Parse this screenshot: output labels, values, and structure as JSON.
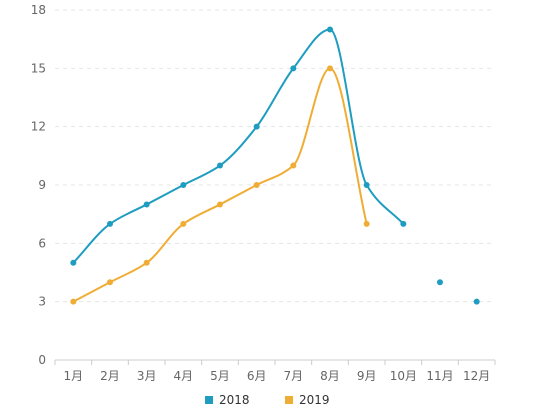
{
  "chart_data": {
    "type": "line",
    "title": "",
    "xlabel": "",
    "ylabel": "",
    "categories": [
      "1月",
      "2月",
      "3月",
      "4月",
      "5月",
      "6月",
      "7月",
      "8月",
      "9月",
      "10月",
      "11月",
      "12月"
    ],
    "ylim": [
      0,
      18
    ],
    "yticks": [
      0,
      3,
      6,
      9,
      12,
      15,
      18
    ],
    "grid": true,
    "smooth": true,
    "legend": "bottom",
    "series": [
      {
        "name": "2018",
        "color": "#1e9dc0",
        "values": [
          5,
          7,
          8,
          9,
          10,
          12,
          15,
          17,
          9,
          7,
          4,
          3
        ],
        "connected_through_index": 9
      },
      {
        "name": "2019",
        "color": "#f0ad35",
        "values": [
          3,
          4,
          5,
          7,
          8,
          9,
          10,
          15,
          7,
          null,
          null,
          null
        ],
        "connected_through_index": 8
      }
    ]
  }
}
